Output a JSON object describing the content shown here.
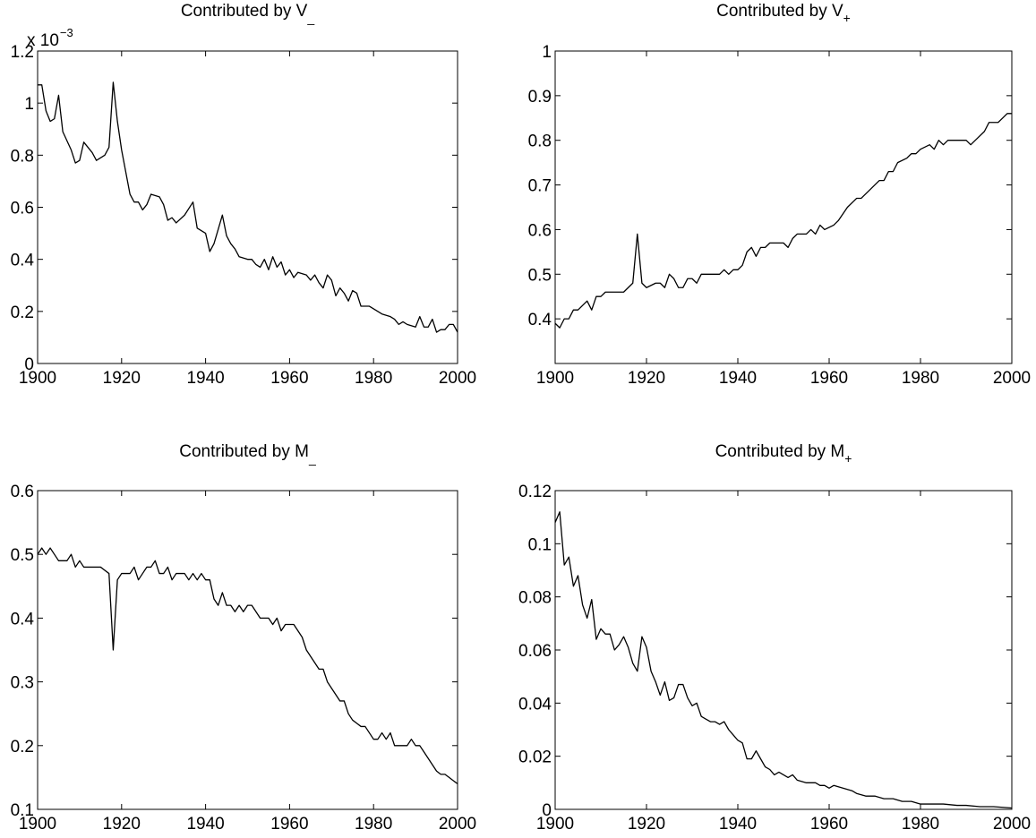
{
  "chart_data": [
    {
      "type": "line",
      "title": "Contributed by V",
      "title_sub": "_",
      "color": "#000000",
      "y_exponent_base": "x 10",
      "y_exponent": "−3",
      "xlim": [
        1900,
        2000
      ],
      "xticks": [
        1900,
        1920,
        1940,
        1960,
        1980,
        2000
      ],
      "ylim": [
        0,
        1.2
      ],
      "yticks": [
        0,
        0.2,
        0.4,
        0.6,
        0.8,
        1,
        1.2
      ],
      "x": [
        1900,
        1901,
        1902,
        1903,
        1904,
        1905,
        1906,
        1908,
        1909,
        1910,
        1911,
        1913,
        1914,
        1916,
        1917,
        1918,
        1919,
        1920,
        1922,
        1923,
        1924,
        1925,
        1926,
        1927,
        1929,
        1930,
        1931,
        1932,
        1933,
        1935,
        1937,
        1938,
        1939,
        1940,
        1941,
        1942,
        1944,
        1945,
        1946,
        1947,
        1948,
        1950,
        1951,
        1952,
        1953,
        1954,
        1955,
        1956,
        1957,
        1958,
        1959,
        1960,
        1961,
        1962,
        1964,
        1965,
        1966,
        1967,
        1968,
        1969,
        1970,
        1971,
        1972,
        1973,
        1974,
        1975,
        1976,
        1977,
        1979,
        1980,
        1982,
        1984,
        1985,
        1986,
        1987,
        1988,
        1990,
        1991,
        1992,
        1993,
        1994,
        1995,
        1996,
        1997,
        1998,
        1999,
        2000
      ],
      "values": [
        1.07,
        1.07,
        0.97,
        0.93,
        0.94,
        1.03,
        0.89,
        0.82,
        0.77,
        0.78,
        0.85,
        0.81,
        0.78,
        0.8,
        0.83,
        1.08,
        0.93,
        0.82,
        0.65,
        0.62,
        0.62,
        0.59,
        0.61,
        0.65,
        0.64,
        0.61,
        0.55,
        0.56,
        0.54,
        0.57,
        0.62,
        0.52,
        0.51,
        0.5,
        0.43,
        0.46,
        0.57,
        0.49,
        0.46,
        0.44,
        0.41,
        0.4,
        0.4,
        0.38,
        0.37,
        0.4,
        0.36,
        0.41,
        0.37,
        0.39,
        0.34,
        0.36,
        0.33,
        0.35,
        0.34,
        0.32,
        0.34,
        0.31,
        0.29,
        0.34,
        0.32,
        0.26,
        0.29,
        0.27,
        0.24,
        0.28,
        0.27,
        0.22,
        0.22,
        0.21,
        0.19,
        0.18,
        0.17,
        0.15,
        0.16,
        0.15,
        0.14,
        0.18,
        0.14,
        0.14,
        0.17,
        0.12,
        0.13,
        0.13,
        0.15,
        0.15,
        0.12
      ]
    },
    {
      "type": "line",
      "title": "Contributed by V",
      "title_sub": "+",
      "color": "#000000",
      "xlim": [
        1900,
        2000
      ],
      "xticks": [
        1900,
        1920,
        1940,
        1960,
        1980,
        2000
      ],
      "ylim": [
        0.3,
        1
      ],
      "yticks": [
        0.4,
        0.5,
        0.6,
        0.7,
        0.8,
        0.9,
        1
      ],
      "x": [
        1900,
        1901,
        1902,
        1903,
        1904,
        1905,
        1906,
        1907,
        1908,
        1909,
        1910,
        1911,
        1912,
        1914,
        1915,
        1916,
        1917,
        1918,
        1919,
        1920,
        1922,
        1923,
        1924,
        1925,
        1926,
        1927,
        1928,
        1929,
        1930,
        1931,
        1932,
        1934,
        1936,
        1937,
        1938,
        1939,
        1940,
        1941,
        1942,
        1943,
        1944,
        1945,
        1946,
        1947,
        1948,
        1950,
        1951,
        1952,
        1953,
        1955,
        1956,
        1957,
        1958,
        1959,
        1961,
        1962,
        1964,
        1966,
        1967,
        1968,
        1970,
        1971,
        1972,
        1973,
        1974,
        1975,
        1977,
        1978,
        1979,
        1980,
        1982,
        1983,
        1984,
        1985,
        1986,
        1988,
        1989,
        1990,
        1991,
        1992,
        1994,
        1995,
        1996,
        1997,
        1998,
        1999,
        2000
      ],
      "values": [
        0.39,
        0.38,
        0.4,
        0.4,
        0.42,
        0.42,
        0.43,
        0.44,
        0.42,
        0.45,
        0.45,
        0.46,
        0.46,
        0.46,
        0.46,
        0.47,
        0.48,
        0.59,
        0.48,
        0.47,
        0.48,
        0.48,
        0.47,
        0.5,
        0.49,
        0.47,
        0.47,
        0.49,
        0.49,
        0.48,
        0.5,
        0.5,
        0.5,
        0.51,
        0.5,
        0.51,
        0.51,
        0.52,
        0.55,
        0.56,
        0.54,
        0.56,
        0.56,
        0.57,
        0.57,
        0.57,
        0.56,
        0.58,
        0.59,
        0.59,
        0.6,
        0.59,
        0.61,
        0.6,
        0.61,
        0.62,
        0.65,
        0.67,
        0.67,
        0.68,
        0.7,
        0.71,
        0.71,
        0.73,
        0.73,
        0.75,
        0.76,
        0.77,
        0.77,
        0.78,
        0.79,
        0.78,
        0.8,
        0.79,
        0.8,
        0.8,
        0.8,
        0.8,
        0.79,
        0.8,
        0.82,
        0.84,
        0.84,
        0.84,
        0.85,
        0.86,
        0.86
      ]
    },
    {
      "type": "line",
      "title": "Contributed by M",
      "title_sub": "_",
      "color": "#000000",
      "xlim": [
        1900,
        2000
      ],
      "xticks": [
        1900,
        1920,
        1940,
        1960,
        1980,
        2000
      ],
      "ylim": [
        0.1,
        0.6
      ],
      "yticks": [
        0.1,
        0.2,
        0.3,
        0.4,
        0.5,
        0.6
      ],
      "x": [
        1900,
        1901,
        1902,
        1903,
        1904,
        1905,
        1906,
        1907,
        1908,
        1909,
        1910,
        1911,
        1913,
        1915,
        1917,
        1918,
        1919,
        1920,
        1922,
        1923,
        1924,
        1925,
        1926,
        1927,
        1928,
        1929,
        1930,
        1931,
        1932,
        1933,
        1935,
        1936,
        1937,
        1938,
        1939,
        1940,
        1941,
        1942,
        1943,
        1944,
        1945,
        1946,
        1947,
        1948,
        1949,
        1950,
        1951,
        1952,
        1953,
        1955,
        1956,
        1957,
        1958,
        1959,
        1961,
        1962,
        1963,
        1964,
        1965,
        1966,
        1967,
        1968,
        1969,
        1970,
        1971,
        1972,
        1973,
        1974,
        1975,
        1976,
        1977,
        1978,
        1979,
        1980,
        1981,
        1982,
        1983,
        1984,
        1985,
        1986,
        1987,
        1988,
        1989,
        1990,
        1991,
        1992,
        1993,
        1994,
        1995,
        1996,
        1997,
        1998,
        1999,
        2000
      ],
      "values": [
        0.5,
        0.51,
        0.5,
        0.51,
        0.5,
        0.49,
        0.49,
        0.49,
        0.5,
        0.48,
        0.49,
        0.48,
        0.48,
        0.48,
        0.47,
        0.35,
        0.46,
        0.47,
        0.47,
        0.48,
        0.46,
        0.47,
        0.48,
        0.48,
        0.49,
        0.47,
        0.47,
        0.48,
        0.46,
        0.47,
        0.47,
        0.46,
        0.47,
        0.46,
        0.47,
        0.46,
        0.46,
        0.43,
        0.42,
        0.44,
        0.42,
        0.42,
        0.41,
        0.42,
        0.41,
        0.42,
        0.42,
        0.41,
        0.4,
        0.4,
        0.39,
        0.4,
        0.38,
        0.39,
        0.39,
        0.38,
        0.37,
        0.35,
        0.34,
        0.33,
        0.32,
        0.32,
        0.3,
        0.29,
        0.28,
        0.27,
        0.27,
        0.25,
        0.24,
        0.235,
        0.23,
        0.23,
        0.22,
        0.21,
        0.21,
        0.22,
        0.21,
        0.22,
        0.2,
        0.2,
        0.2,
        0.2,
        0.21,
        0.2,
        0.2,
        0.19,
        0.18,
        0.17,
        0.16,
        0.155,
        0.155,
        0.15,
        0.145,
        0.14
      ]
    },
    {
      "type": "line",
      "title": "Contributed by M",
      "title_sub": "+",
      "color": "#000000",
      "xlim": [
        1900,
        2000
      ],
      "xticks": [
        1900,
        1920,
        1940,
        1960,
        1980,
        2000
      ],
      "ylim": [
        0,
        0.12
      ],
      "yticks": [
        0,
        0.02,
        0.04,
        0.06,
        0.08,
        0.1,
        0.12
      ],
      "x": [
        1900,
        1901,
        1902,
        1903,
        1904,
        1905,
        1906,
        1907,
        1908,
        1909,
        1910,
        1911,
        1912,
        1913,
        1914,
        1915,
        1916,
        1917,
        1918,
        1919,
        1920,
        1921,
        1922,
        1923,
        1924,
        1925,
        1926,
        1927,
        1928,
        1929,
        1930,
        1931,
        1932,
        1933,
        1934,
        1935,
        1936,
        1937,
        1938,
        1939,
        1940,
        1941,
        1942,
        1943,
        1944,
        1945,
        1946,
        1947,
        1948,
        1949,
        1950,
        1951,
        1952,
        1953,
        1955,
        1957,
        1958,
        1959,
        1960,
        1961,
        1963,
        1965,
        1966,
        1968,
        1970,
        1972,
        1974,
        1976,
        1978,
        1980,
        1983,
        1985,
        1988,
        1990,
        1993,
        1996,
        2000
      ],
      "values": [
        0.108,
        0.112,
        0.092,
        0.095,
        0.084,
        0.088,
        0.077,
        0.072,
        0.079,
        0.064,
        0.068,
        0.066,
        0.066,
        0.06,
        0.062,
        0.065,
        0.061,
        0.055,
        0.052,
        0.065,
        0.061,
        0.052,
        0.048,
        0.043,
        0.048,
        0.041,
        0.042,
        0.047,
        0.047,
        0.042,
        0.039,
        0.04,
        0.035,
        0.034,
        0.033,
        0.033,
        0.032,
        0.033,
        0.03,
        0.028,
        0.026,
        0.025,
        0.019,
        0.019,
        0.022,
        0.019,
        0.016,
        0.015,
        0.013,
        0.014,
        0.013,
        0.012,
        0.013,
        0.011,
        0.01,
        0.01,
        0.009,
        0.009,
        0.008,
        0.009,
        0.008,
        0.007,
        0.006,
        0.005,
        0.005,
        0.004,
        0.004,
        0.003,
        0.003,
        0.002,
        0.002,
        0.002,
        0.0015,
        0.0015,
        0.001,
        0.001,
        0.0005
      ]
    }
  ]
}
